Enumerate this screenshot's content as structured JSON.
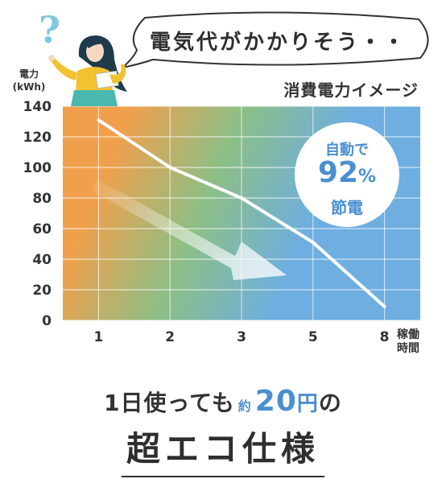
{
  "speech_bubble": {
    "text": "電気代がかかりそう・・"
  },
  "question_mark": "?",
  "chart_data": {
    "type": "line",
    "title": "消費電力イメージ",
    "ylabel_lines": [
      "電力",
      "(kWh)"
    ],
    "xlabel_lines": [
      "稼働",
      "時間"
    ],
    "categories": [
      "1",
      "2",
      "3",
      "5",
      "8"
    ],
    "y_ticks": [
      "0",
      "20",
      "40",
      "60",
      "80",
      "100",
      "120",
      "140"
    ],
    "ylim": [
      0,
      140
    ],
    "series": [
      {
        "values": [
          131,
          100,
          80,
          51,
          9
        ]
      }
    ],
    "grid": true,
    "gradient_colors": [
      "#f0a04c",
      "#8cbf86",
      "#6eaee0"
    ],
    "line_color": "#ffffff"
  },
  "badge": {
    "line1": "自動で",
    "number": "92",
    "percent": "%",
    "line3": "節電"
  },
  "tagline": {
    "prefix": "1日使っても",
    "approx": "約",
    "amount": "20",
    "unit": "円",
    "suffix": "の"
  },
  "headline": "超エコ仕様",
  "colors": {
    "accent": "#4a8fd0",
    "text": "#333333",
    "person_top": "#f2c230",
    "person_skirt": "#4bb8b0"
  }
}
